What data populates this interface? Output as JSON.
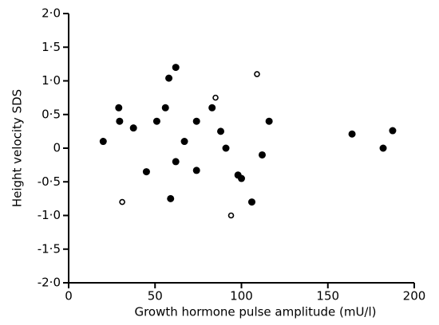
{
  "chart_data": {
    "type": "scatter",
    "x_label": "Growth hormone pulse amplitude (mU/l)",
    "y_label": "Height velocity SDS",
    "xlim": [
      0,
      200
    ],
    "xticks": [
      0,
      50,
      100,
      150,
      200
    ],
    "ylim": [
      -2,
      2
    ],
    "yticks": [
      {
        "value": -2,
        "label": "-2·0"
      },
      {
        "value": -1.5,
        "label": "-1·5"
      },
      {
        "value": -1,
        "label": "-1·0"
      },
      {
        "value": -0.5,
        "label": "-0·5"
      },
      0,
      {
        "value": 0.5,
        "label": "0·5"
      },
      {
        "value": 1,
        "label": "1·0"
      },
      {
        "value": 1.5,
        "label": "1·5"
      },
      {
        "value": 2,
        "label": "2·0"
      }
    ],
    "series": [
      {
        "color": "#000000",
        "marker": "filled",
        "x": [
          20,
          29,
          29.5,
          37.5,
          45,
          51,
          56,
          58,
          59,
          62,
          62,
          67,
          74,
          74,
          83,
          88,
          91,
          98,
          100,
          106,
          112,
          116,
          164,
          182,
          187.5
        ],
        "values": [
          0.1,
          0.6,
          0.4,
          0.3,
          -0.35,
          0.4,
          0.6,
          1.04,
          -0.75,
          1.2,
          -0.2,
          0.1,
          0.4,
          -0.33,
          0.6,
          0.25,
          0,
          -0.4,
          -0.45,
          -0.8,
          -0.1,
          0.4,
          0.21,
          0,
          0.26
        ]
      },
      {
        "color": "#000000",
        "marker": "open",
        "x": [
          31,
          85,
          94,
          109
        ],
        "values": [
          -0.8,
          0.75,
          -1.0,
          1.1
        ]
      }
    ]
  }
}
